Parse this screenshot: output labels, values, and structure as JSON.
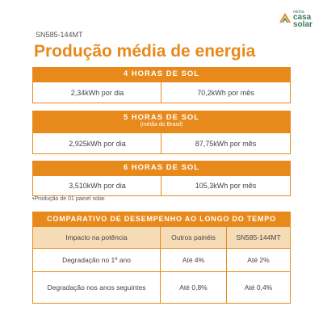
{
  "logo": {
    "small": "minha",
    "line1": "casa",
    "line2": "solar"
  },
  "model": "SN585-144MT",
  "title": "Produção média de energia",
  "sections": [
    {
      "header": "4 HORAS DE SOL",
      "per_day": "2,34kWh por dia",
      "per_month": "70,2kWh por mês"
    },
    {
      "header": "5 HORAS DE SOL",
      "subheader": "(média do Brasil)",
      "per_day": "2,925kWh por dia",
      "per_month": "87,75kWh por mês"
    },
    {
      "header": "6 HORAS DE SOL",
      "per_day": "3,510kWh por dia",
      "per_month": "105,3kWh por mês"
    }
  ],
  "note": "•Produção de 01 painel solar.",
  "table": {
    "title": "COMPARATIVO DE DESEMPENHO AO LONGO DO TEMPO",
    "header": [
      "Impacto na potência",
      "Outros painéis",
      "SN585-144MT"
    ],
    "rows": [
      [
        "Degradação no 1º ano",
        "Até 4%",
        "Até 2%"
      ],
      [
        "Degradação nos anos seguintes",
        "Até 0,8%",
        "Até 0,4%"
      ]
    ]
  }
}
